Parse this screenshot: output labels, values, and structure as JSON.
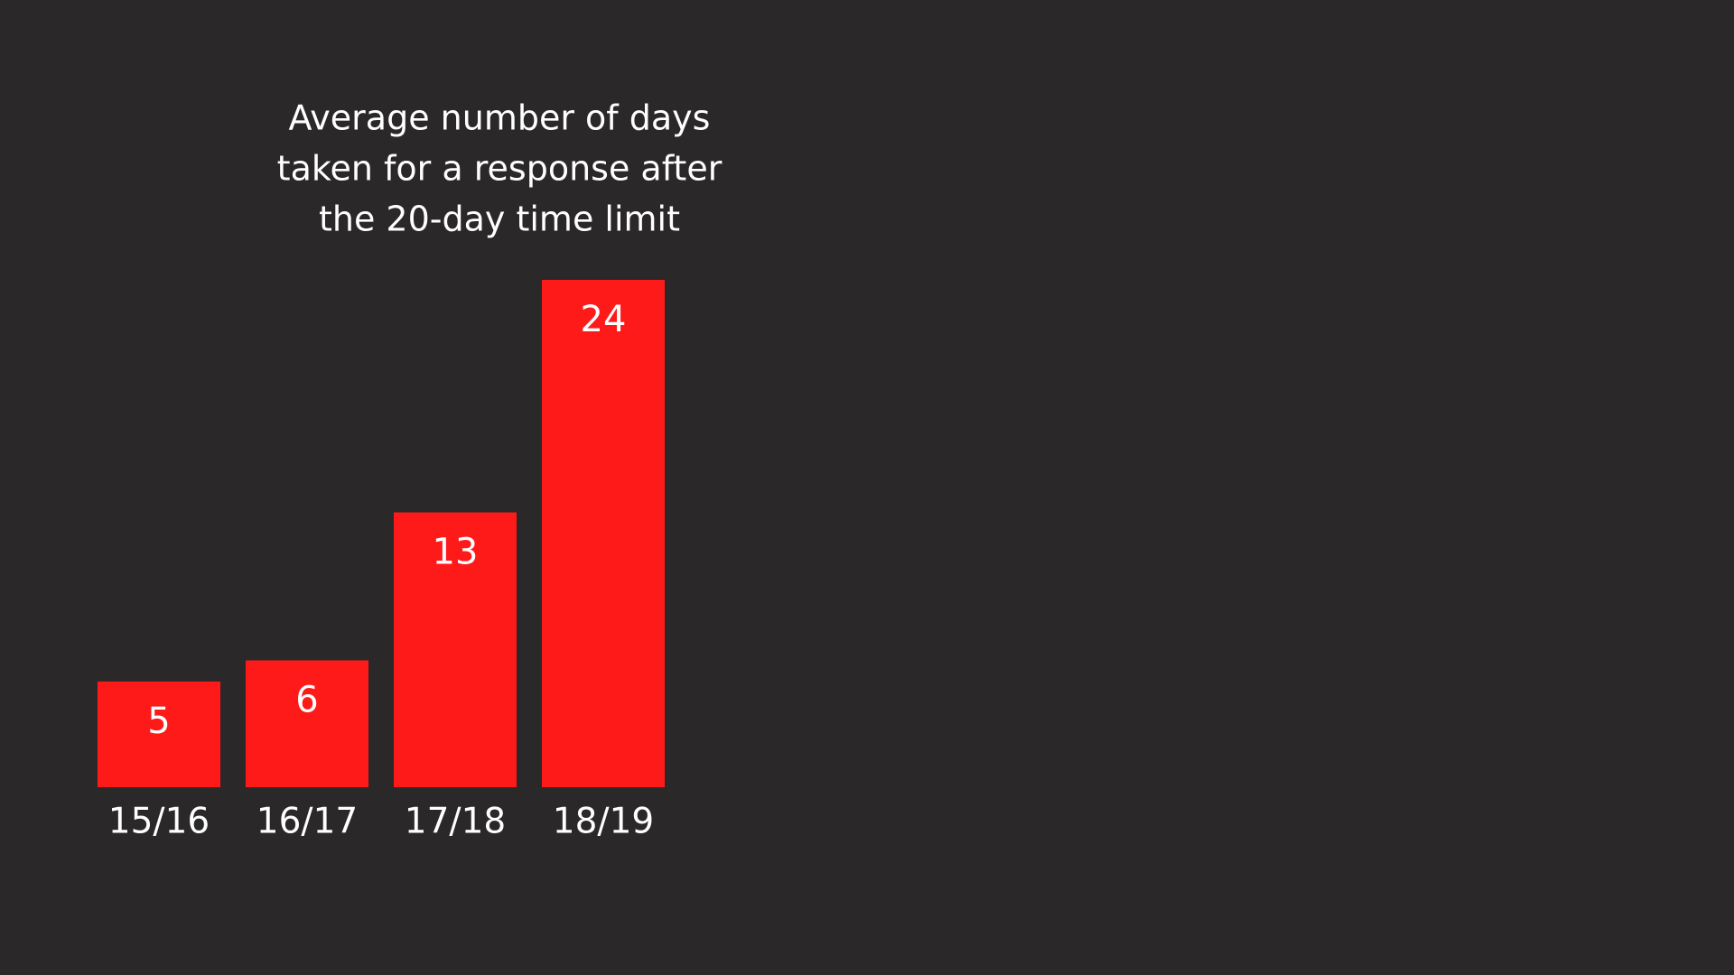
{
  "chart_data": {
    "type": "bar",
    "title": [
      "Average number of days",
      "taken for a response after",
      "the 20-day time limit"
    ],
    "categories": [
      "15/16",
      "16/17",
      "17/18",
      "18/19"
    ],
    "values": [
      5,
      6,
      13,
      24
    ],
    "color": "#ff1a1a",
    "ylim": [
      0,
      24
    ]
  }
}
